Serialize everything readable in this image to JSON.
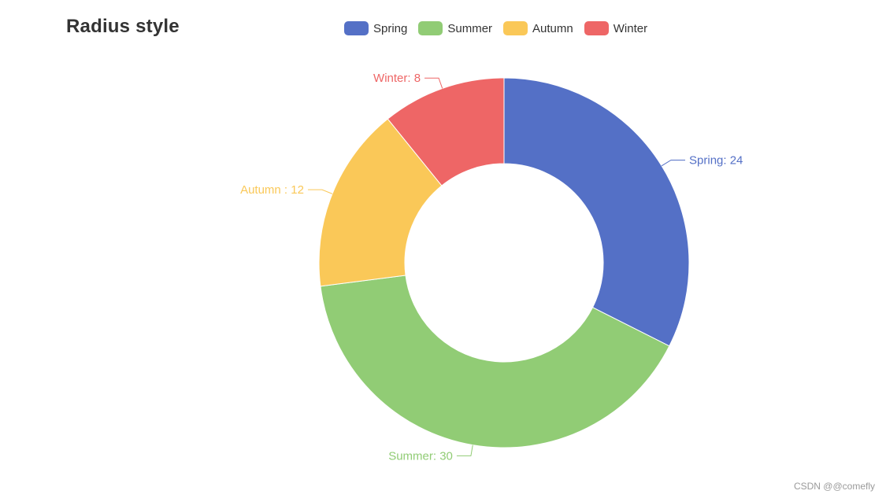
{
  "chart_data": {
    "type": "pie",
    "variant": "donut",
    "title": "Radius style",
    "legend_placement": "top",
    "series": [
      {
        "name": "Spring",
        "value": 24,
        "color": "#5470c6",
        "label": "Spring: 24"
      },
      {
        "name": "Summer",
        "value": 30,
        "color": "#91cc75",
        "label": "Summer: 30"
      },
      {
        "name": "Autumn",
        "value": 12,
        "color": "#fac858",
        "label": "Autumn : 12"
      },
      {
        "name": "Winter",
        "value": 8,
        "color": "#ee6666",
        "label": "Winter: 8"
      }
    ]
  },
  "watermark": "CSDN @@comefly"
}
